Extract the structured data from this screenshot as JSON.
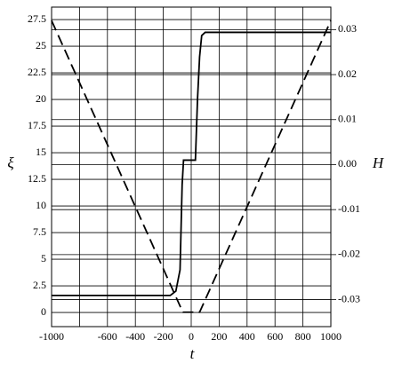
{
  "chart_data": {
    "type": "line",
    "x_label": "t",
    "y_label": "ξ",
    "y2_label": "H",
    "xlim": [
      -1000,
      1000
    ],
    "xticks": [
      -1000,
      -600,
      -400,
      -200,
      0,
      200,
      400,
      600,
      800,
      1000
    ],
    "xgrid": [
      -1000,
      -800,
      -600,
      -400,
      -200,
      0,
      200,
      400,
      600,
      800,
      1000
    ],
    "ylim": [
      -1.33,
      28.67
    ],
    "yticks": [
      0,
      2.5,
      5,
      7.5,
      10,
      12.5,
      15,
      17.5,
      20,
      22.5,
      25,
      27.5
    ],
    "y2lim": [
      -0.036,
      0.035
    ],
    "y2ticks": [
      -0.03,
      -0.02,
      -0.01,
      {
        "value": 0,
        "label": "0.00"
      },
      0.01,
      0.02,
      0.03
    ],
    "grid": true,
    "series": [
      {
        "name": "ξ",
        "color": "#000000",
        "dash": false,
        "x": [
          -1000,
          -150,
          -110,
          -80,
          -65,
          -55,
          30,
          45,
          60,
          75,
          100,
          1000
        ],
        "values": [
          1.6,
          1.6,
          2.0,
          4,
          12,
          14.3,
          14.3,
          20,
          24,
          26,
          26.3,
          26.3
        ]
      },
      {
        "name": "H",
        "color": "#000000",
        "dash": true,
        "axis": "y2",
        "x": [
          -1000,
          -60,
          60,
          1000
        ],
        "values": [
          0.032,
          -0.0328,
          -0.0328,
          0.032
        ]
      }
    ]
  }
}
